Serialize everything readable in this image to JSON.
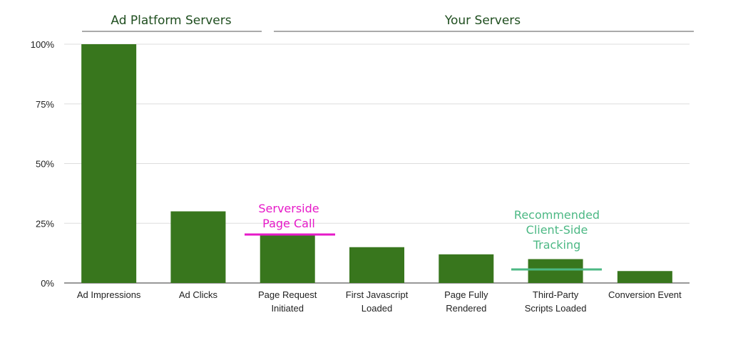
{
  "chart_data": {
    "type": "bar",
    "groups": [
      "Ad Platform Servers",
      "Your Servers"
    ],
    "categories": [
      "Ad Impressions",
      "Ad Clicks",
      "Page Request Initiated",
      "First Javascript Loaded",
      "Page Fully Rendered",
      "Third-Party Scripts Loaded",
      "Conversion Event"
    ],
    "values": [
      100,
      30,
      20,
      15,
      12,
      10,
      5
    ],
    "color": "#38761d",
    "ylim": [
      0,
      100
    ],
    "yticks": [
      {
        "value": 0,
        "label": "0%"
      },
      {
        "value": 25,
        "label": "25%"
      },
      {
        "value": 50,
        "label": "50%"
      },
      {
        "value": 75,
        "label": "75%"
      },
      {
        "value": 100,
        "label": "100%"
      }
    ],
    "grid": true,
    "annotations": [
      {
        "lines": [
          "Serverside",
          "Page Call"
        ],
        "color": "#e619c8"
      },
      {
        "lines": [
          "Recommended",
          "Client-Side",
          "Tracking"
        ],
        "color": "#4cb884"
      }
    ]
  }
}
